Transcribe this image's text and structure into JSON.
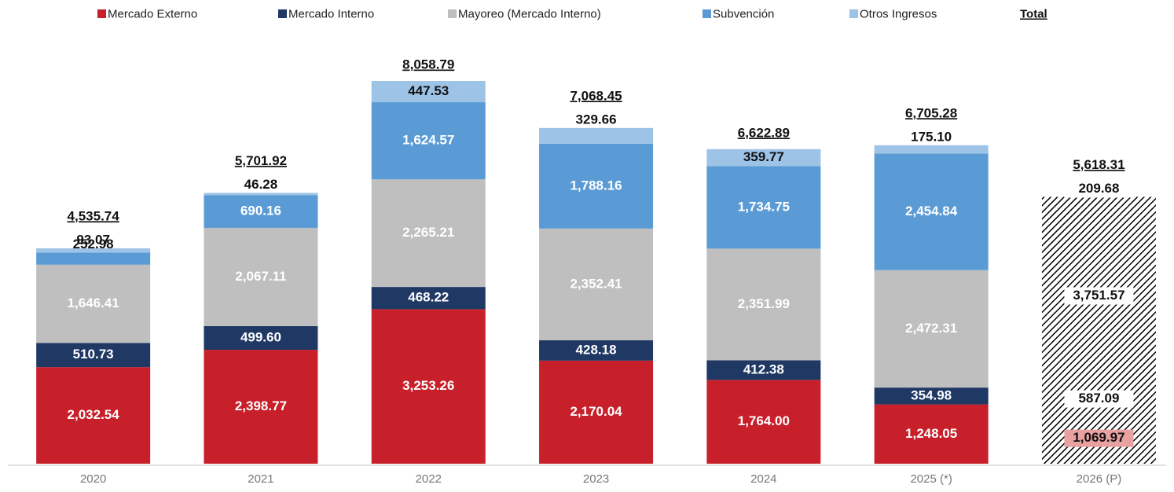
{
  "chart_data": {
    "type": "stacked-bar",
    "categories": [
      "2020",
      "2021",
      "2022",
      "2023",
      "2024",
      "2025 (*)",
      "2026 (P)"
    ],
    "hatched": [
      false,
      false,
      false,
      false,
      false,
      false,
      true
    ],
    "series": [
      {
        "name": "Mercado Externo",
        "color": "#c8202b",
        "values": [
          2032.54,
          2398.77,
          3253.26,
          2170.04,
          1764.0,
          1248.05,
          1069.97
        ],
        "value_labels": [
          "2,032.54",
          "2,398.77",
          "3,253.26",
          "2,170.04",
          "1,764.00",
          "1,248.05",
          "1,069.97"
        ]
      },
      {
        "name": "Mercado Interno",
        "color": "#1f3864",
        "values": [
          510.73,
          499.6,
          468.22,
          428.18,
          412.38,
          354.98,
          587.09
        ],
        "value_labels": [
          "510.73",
          "499.60",
          "468.22",
          "428.18",
          "412.38",
          "354.98",
          "587.09"
        ]
      },
      {
        "name": "Mayoreo  (Mercado Interno)",
        "color": "#bfbfbf",
        "values": [
          1646.41,
          2067.11,
          2265.21,
          2352.41,
          2351.99,
          2472.31,
          3751.57
        ],
        "value_labels": [
          "1,646.41",
          "2,067.11",
          "2,265.21",
          "2,352.41",
          "2,351.99",
          "2,472.31",
          "3,751.57"
        ]
      },
      {
        "name": "Subvención",
        "color": "#5b9bd5",
        "values": [
          252.98,
          690.16,
          1624.57,
          1788.16,
          1734.75,
          2454.84,
          null
        ],
        "value_labels": [
          "252.98",
          "690.16",
          "1,624.57",
          "1,788.16",
          "1,734.75",
          "2,454.84",
          null
        ]
      },
      {
        "name": "Otros Ingresos",
        "color": "#9dc3e6",
        "values": [
          93.07,
          46.28,
          447.53,
          329.66,
          359.77,
          175.1,
          209.68
        ],
        "value_labels": [
          "93.07",
          "46.28",
          "447.53",
          "329.66",
          "359.77",
          "175.10",
          "209.68"
        ]
      }
    ],
    "total_name": "Total",
    "totals": [
      4535.74,
      5701.92,
      8058.79,
      7068.45,
      6622.89,
      6705.28,
      5618.31
    ],
    "total_labels": [
      "4,535.74",
      "5,701.92",
      "8,058.79",
      "7,068.45",
      "6,622.89",
      "6,705.28",
      "5,618.31"
    ]
  }
}
